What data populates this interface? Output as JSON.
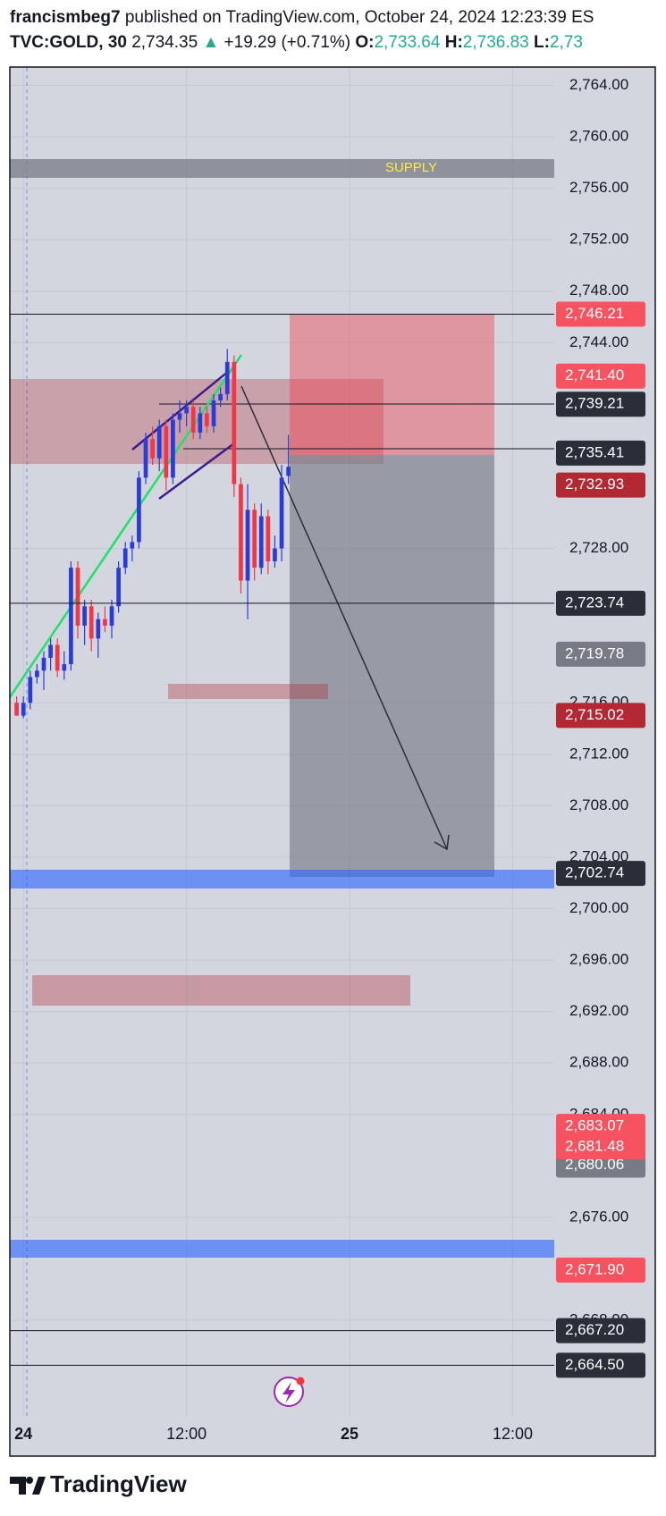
{
  "header": {
    "author": "francismbeg7",
    "published": "published on TradingView.com, October 24, 2024 12:23:39 ES",
    "symbol": "TVC:GOLD, 30",
    "last": "2,734.35",
    "arrow": "▲",
    "change": "+19.29 (+0.71%)",
    "o_label": "O:",
    "o": "2,733.64",
    "h_label": "H:",
    "h": "2,736.83",
    "l_label": "L:",
    "l": "2,73"
  },
  "footer": {
    "brand": "TradingView"
  },
  "chart_data": {
    "type": "candlestick",
    "title": "GOLD, 30, TVC",
    "x": [
      -0.5,
      0,
      0.5,
      1,
      1.5,
      2,
      2.5,
      3,
      3.5,
      4,
      4.5,
      5,
      5.5,
      6,
      6.5,
      7,
      7.5,
      8,
      8.5,
      9,
      9.5,
      10,
      10.5,
      11,
      11.5,
      12,
      12.5,
      13,
      13.5,
      14,
      14.5,
      15,
      15.5,
      16,
      16.5,
      17,
      17.5,
      18,
      18.5,
      19,
      19.5
    ],
    "open": [
      2716,
      2715,
      2716,
      2718,
      2718.5,
      2719.5,
      2720.5,
      2718.5,
      2719,
      2726.5,
      2722,
      2723.5,
      2721,
      2722.5,
      2722,
      2723.5,
      2726.5,
      2728,
      2728.5,
      2733.5,
      2736.5,
      2735,
      2737.5,
      2733.5,
      2738,
      2738.5,
      2739,
      2737,
      2738.5,
      2737.5,
      2739.5,
      2740,
      2742.5,
      2733,
      2725.5,
      2731,
      2726.5,
      2730.5,
      2727,
      2728,
      2733.64
    ],
    "high": [
      2716.5,
      2716.5,
      2718.5,
      2719,
      2720,
      2721,
      2721,
      2720,
      2727,
      2727,
      2724,
      2724,
      2723,
      2723.5,
      2724,
      2727,
      2728.5,
      2729,
      2734,
      2737,
      2737.5,
      2738,
      2738,
      2738.5,
      2739.5,
      2739.5,
      2739.5,
      2739,
      2739,
      2740,
      2740.5,
      2743.5,
      2743,
      2733.5,
      2733,
      2731.5,
      2731.5,
      2731,
      2729,
      2734.5,
      2736.83
    ],
    "low": [
      2715,
      2714.8,
      2715.5,
      2717.5,
      2717,
      2718.5,
      2718,
      2717.8,
      2718.5,
      2721,
      2720.5,
      2720,
      2719.5,
      2721.5,
      2721,
      2723,
      2726,
      2727,
      2728,
      2733,
      2734.5,
      2734,
      2732.5,
      2733,
      2737,
      2737.5,
      2736.5,
      2736.5,
      2737,
      2737,
      2739,
      2739.5,
      2732,
      2724.5,
      2722.5,
      2725.5,
      2726,
      2726,
      2726.5,
      2727,
      2733
    ],
    "close": [
      2715,
      2716,
      2718,
      2718.5,
      2719.5,
      2720.5,
      2718.5,
      2719,
      2726.5,
      2722,
      2723.5,
      2721,
      2722.5,
      2722,
      2723.5,
      2726.5,
      2728,
      2728.5,
      2733.5,
      2736.5,
      2735,
      2737.5,
      2733.5,
      2738,
      2738.5,
      2739,
      2737,
      2738.5,
      2737.5,
      2739.5,
      2740,
      2742.5,
      2733,
      2725.5,
      2731,
      2726.5,
      2730.5,
      2727,
      2728,
      2733.5,
      2734.35
    ],
    "up_color": "#2a3bd8",
    "down_color": "#f23645",
    "xlim": [
      -1,
      39.06
    ],
    "xticks": [
      {
        "value": 0,
        "label": "24"
      },
      {
        "value": 12,
        "label": "12:00"
      },
      {
        "value": 24,
        "label": "25"
      },
      {
        "value": 36,
        "label": "12:00"
      }
    ],
    "ylim": [
      2660.5,
      2765.35
    ],
    "yticks": [
      {
        "value": 2764,
        "label": "2,764.00"
      },
      {
        "value": 2760,
        "label": "2,760.00"
      },
      {
        "value": 2756,
        "label": "2,756.00"
      },
      {
        "value": 2752,
        "label": "2,752.00"
      },
      {
        "value": 2748,
        "label": "2,748.00"
      },
      {
        "value": 2744,
        "label": "2,744.00"
      },
      {
        "value": 2728,
        "label": "2,728.00"
      },
      {
        "value": 2716,
        "label": "2,716.00"
      },
      {
        "value": 2712,
        "label": "2,712.00"
      },
      {
        "value": 2708,
        "label": "2,708.00"
      },
      {
        "value": 2704,
        "label": "2,704.00"
      },
      {
        "value": 2700,
        "label": "2,700.00"
      },
      {
        "value": 2696,
        "label": "2,696.00"
      },
      {
        "value": 2692,
        "label": "2,692.00"
      },
      {
        "value": 2688,
        "label": "2,688.00"
      },
      {
        "value": 2684,
        "label": "2,684.00"
      },
      {
        "value": 2676,
        "label": "2,676.00"
      },
      {
        "value": 2668,
        "label": "2,668.00"
      }
    ],
    "grid": true,
    "price_tags": [
      {
        "value": 2746.21,
        "label": "2,746.21",
        "color": "#f7525f",
        "line": true
      },
      {
        "value": 2741.4,
        "label": "2,741.40",
        "color": "#f7525f"
      },
      {
        "value": 2739.21,
        "label": "2,739.21",
        "color": "#2a2e39"
      },
      {
        "value": 2735.41,
        "label": "2,735.41",
        "color": "#2a2e39"
      },
      {
        "value": 2732.93,
        "label": "2,732.93",
        "color": "#b22833"
      },
      {
        "value": 2723.74,
        "label": "2,723.74",
        "color": "#2a2e39",
        "line": true
      },
      {
        "value": 2719.78,
        "label": "2,719.78",
        "color": "#787b86"
      },
      {
        "value": 2715.02,
        "label": "2,715.02",
        "color": "#b22833"
      },
      {
        "value": 2702.74,
        "label": "2,702.74",
        "color": "#2a2e39"
      },
      {
        "value": 2680.06,
        "label": "2,680.06",
        "color": "#787b86"
      },
      {
        "value": 2683.07,
        "label": "2,683.07",
        "color": "#f7525f"
      },
      {
        "value": 2681.48,
        "label": "2,681.48",
        "color": "#f7525f"
      },
      {
        "value": 2671.9,
        "label": "2,671.90",
        "color": "#f7525f"
      },
      {
        "value": 2667.2,
        "label": "2,667.20",
        "color": "#2a2e39",
        "line": true
      },
      {
        "value": 2664.5,
        "label": "2,664.50",
        "color": "#2a2e39",
        "line": true
      }
    ],
    "annotations": {
      "supply": "SUPPLY"
    }
  }
}
